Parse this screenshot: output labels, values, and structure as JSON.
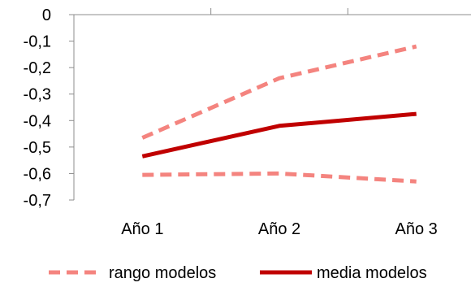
{
  "chart_data": {
    "type": "line",
    "categories": [
      "Año 1",
      "Año 2",
      "Año 3"
    ],
    "ylim": [
      -0.7,
      0
    ],
    "yticks": [
      {
        "value": 0,
        "label": "0"
      },
      {
        "value": -0.1,
        "label": "-0,1"
      },
      {
        "value": -0.2,
        "label": "-0,2"
      },
      {
        "value": -0.3,
        "label": "-0,3"
      },
      {
        "value": -0.4,
        "label": "-0,4"
      },
      {
        "value": -0.5,
        "label": "-0,5"
      },
      {
        "value": -0.6,
        "label": "-0,6"
      },
      {
        "value": -0.7,
        "label": "-0,7"
      }
    ],
    "x_axis_position": "top",
    "grid": false,
    "legend_position": "bottom",
    "legend": [
      "rango modelos",
      "media modelos"
    ],
    "series": [
      {
        "name": "rango modelos",
        "style": "dashed",
        "color": "#f4847f",
        "values": [
          -0.465,
          -0.24,
          -0.12
        ]
      },
      {
        "name": "rango modelos",
        "style": "dashed",
        "color": "#f4847f",
        "values": [
          -0.605,
          -0.6,
          -0.63
        ]
      },
      {
        "name": "media modelos",
        "style": "solid",
        "color": "#c00000",
        "values": [
          -0.535,
          -0.42,
          -0.375
        ]
      }
    ]
  }
}
